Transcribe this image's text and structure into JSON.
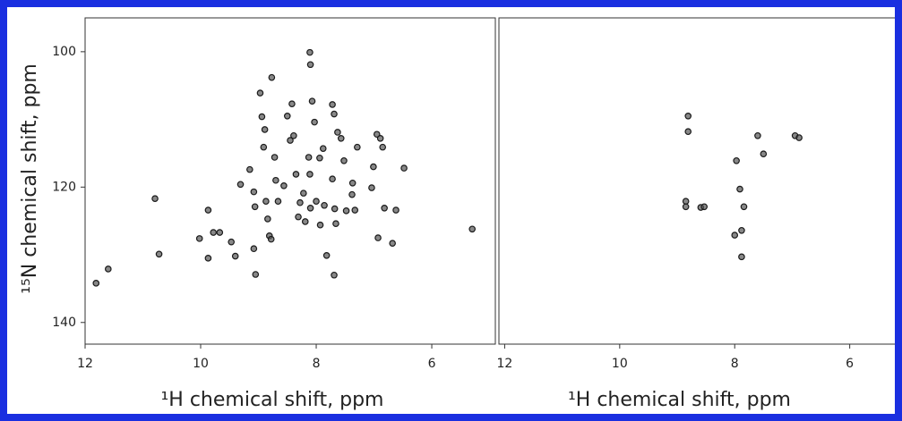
{
  "chart_data": [
    {
      "type": "scatter",
      "x_label": "¹H chemical shift, ppm",
      "y_label": "¹⁵N chemical shift, ppm",
      "xlim": [
        12,
        4.9
      ],
      "ylim": [
        95,
        143.2
      ],
      "xticks": [
        12,
        10,
        8,
        6
      ],
      "yticks": [
        100,
        120,
        140
      ],
      "color": "#555555",
      "x": [
        11.81,
        11.6,
        10.79,
        10.72,
        10.02,
        9.87,
        9.87,
        9.78,
        9.67,
        9.47,
        9.4,
        9.31,
        9.15,
        9.08,
        9.06,
        9.08,
        9.05,
        8.97,
        8.94,
        8.89,
        8.91,
        8.87,
        8.84,
        8.81,
        8.78,
        8.77,
        8.72,
        8.7,
        8.66,
        8.56,
        8.5,
        8.45,
        8.42,
        8.39,
        8.35,
        8.31,
        8.28,
        8.22,
        8.19,
        8.11,
        8.1,
        8.13,
        8.1,
        8.07,
        8.03,
        8.0,
        7.94,
        7.93,
        7.88,
        7.86,
        7.82,
        7.72,
        7.72,
        7.68,
        7.66,
        7.69,
        7.63,
        7.57,
        7.52,
        7.48,
        7.38,
        7.37,
        7.33,
        7.01,
        6.95,
        6.89,
        6.85,
        6.93,
        6.82,
        6.62,
        7.04,
        7.29,
        8.11,
        7.69,
        5.3,
        6.68,
        6.48
      ],
      "y": [
        134.2,
        132.1,
        121.7,
        129.9,
        127.6,
        123.4,
        130.5,
        126.7,
        126.7,
        128.1,
        130.2,
        119.6,
        117.4,
        120.7,
        122.9,
        129.1,
        132.9,
        106.1,
        109.6,
        111.5,
        114.1,
        122.1,
        124.7,
        127.2,
        127.7,
        103.8,
        115.6,
        119.0,
        122.1,
        119.8,
        109.5,
        113.1,
        107.7,
        112.4,
        118.1,
        124.4,
        122.3,
        120.9,
        125.1,
        100.1,
        101.9,
        115.6,
        123.1,
        107.3,
        110.4,
        122.1,
        115.7,
        125.6,
        114.3,
        122.7,
        130.1,
        118.8,
        107.8,
        123.2,
        125.4,
        133.0,
        111.9,
        112.8,
        116.1,
        123.5,
        121.1,
        119.4,
        123.4,
        117.0,
        112.2,
        112.8,
        114.1,
        127.5,
        123.1,
        123.4,
        120.1,
        114.1,
        118.1,
        109.2,
        126.2,
        128.3,
        117.2
      ]
    },
    {
      "type": "scatter",
      "x_label": "¹H chemical shift, ppm",
      "xlim": [
        12.1,
        5.2
      ],
      "ylim": [
        95,
        143.2
      ],
      "xticks": [
        12,
        10,
        8,
        6
      ],
      "color": "#555555",
      "x": [
        8.81,
        8.81,
        8.85,
        8.85,
        8.59,
        8.53,
        7.84,
        7.88,
        7.6,
        7.5,
        6.95,
        6.88,
        7.97,
        7.91,
        8.0,
        7.88
      ],
      "y": [
        109.5,
        111.8,
        122.1,
        122.9,
        123.0,
        122.9,
        122.9,
        130.3,
        112.4,
        115.1,
        112.4,
        112.7,
        116.1,
        120.3,
        127.1,
        126.4
      ]
    }
  ]
}
